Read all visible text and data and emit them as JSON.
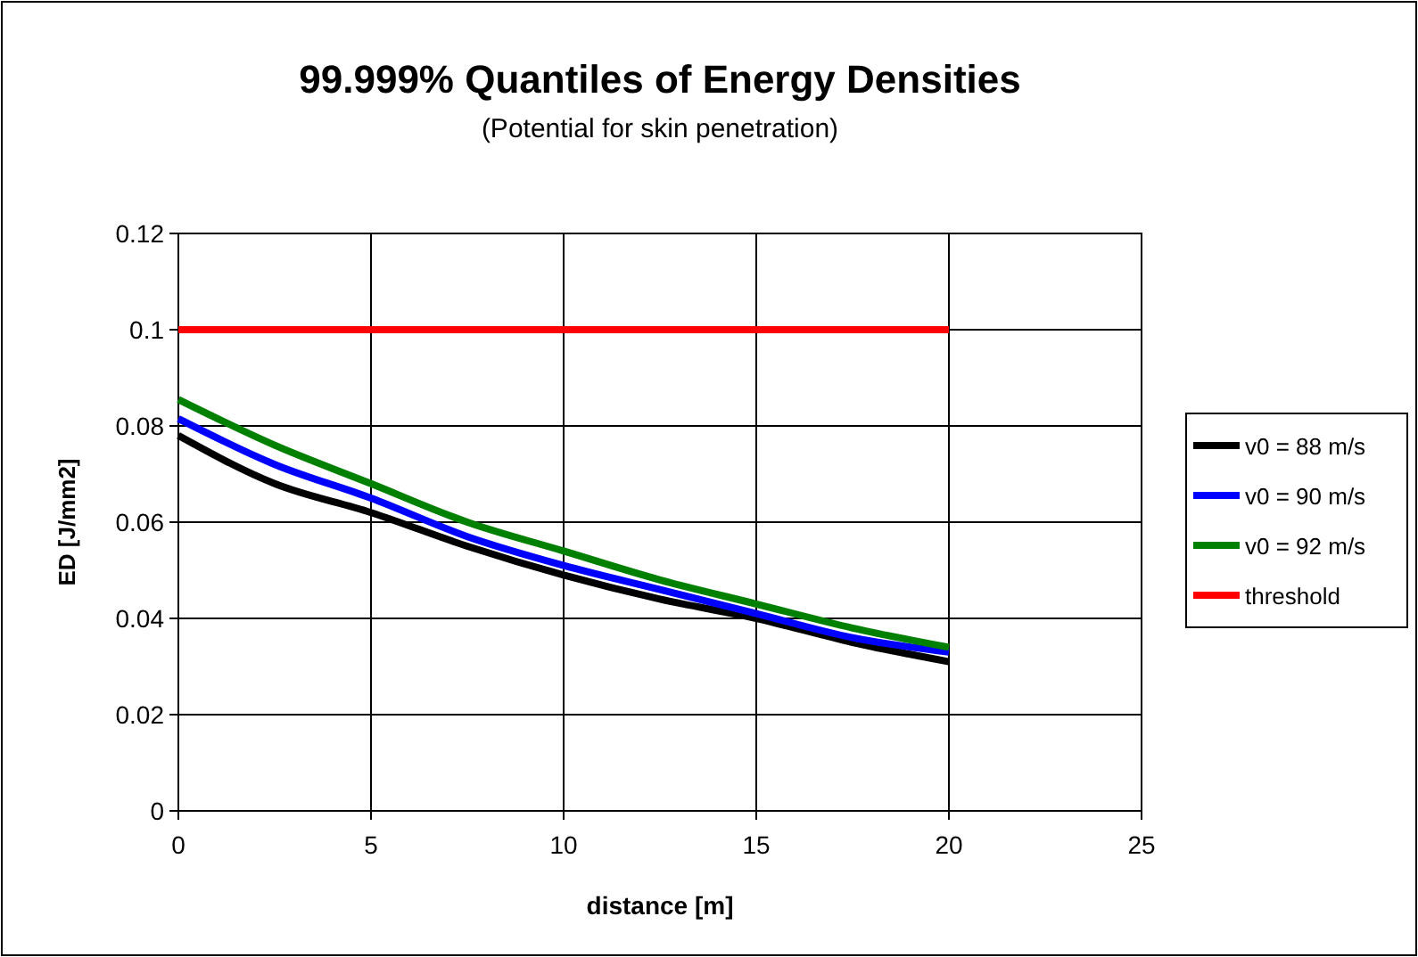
{
  "chart_data": {
    "type": "line",
    "title": "99.999% Quantiles of Energy Densities",
    "subtitle": "(Potential for skin penetration)",
    "xlabel": "distance [m]",
    "ylabel": "ED [J/mm2]",
    "x": [
      0,
      2.5,
      5,
      7.5,
      10,
      12.5,
      15,
      17.5,
      20
    ],
    "series": [
      {
        "name": "v0 = 88 m/s",
        "color": "#000000",
        "values": [
          0.078,
          0.068,
          0.062,
          0.055,
          0.049,
          0.044,
          0.04,
          0.035,
          0.031
        ]
      },
      {
        "name": "v0 = 90 m/s",
        "color": "#0000ff",
        "values": [
          0.0815,
          0.072,
          0.065,
          0.057,
          0.051,
          0.046,
          0.041,
          0.036,
          0.033
        ]
      },
      {
        "name": "v0 = 92 m/s",
        "color": "#008000",
        "values": [
          0.0855,
          0.076,
          0.068,
          0.06,
          0.054,
          0.048,
          0.043,
          0.038,
          0.034
        ]
      },
      {
        "name": "threshold",
        "color": "#ff0000",
        "x": [
          0,
          20
        ],
        "values": [
          0.1,
          0.1
        ]
      }
    ],
    "xlim": [
      0,
      25
    ],
    "xticks": [
      0,
      5,
      10,
      15,
      20,
      25
    ],
    "ylim": [
      0,
      0.12
    ],
    "yticks": [
      0,
      0.02,
      0.04,
      0.06,
      0.08,
      0.1,
      0.12
    ],
    "grid": true,
    "legend": "right",
    "marker": "none",
    "line_style": "solid"
  }
}
